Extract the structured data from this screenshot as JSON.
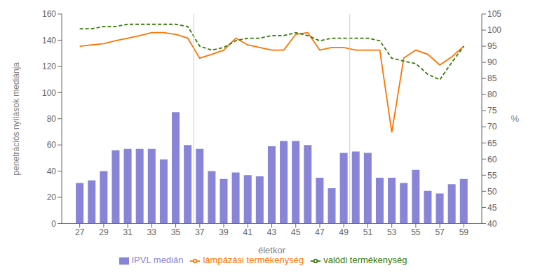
{
  "chart_data": {
    "type": "bar",
    "x": [
      27,
      28,
      29,
      30,
      31,
      32,
      33,
      34,
      35,
      36,
      37,
      38,
      39,
      40,
      41,
      42,
      43,
      44,
      45,
      46,
      47,
      48,
      49,
      50,
      51,
      52,
      53,
      54,
      55,
      56,
      57,
      58,
      59
    ],
    "xlim": [
      25.5,
      60.5
    ],
    "xticks": [
      27,
      29,
      31,
      33,
      35,
      37,
      39,
      41,
      43,
      45,
      47,
      49,
      51,
      53,
      55,
      57,
      59
    ],
    "xlabel": "életkor",
    "ylabel": "penetrációs nyílások mediánja",
    "y2label": "%",
    "ylim": [
      0,
      160
    ],
    "yticks": [
      0,
      20,
      40,
      60,
      80,
      100,
      120,
      140,
      160
    ],
    "y2lim": [
      40,
      105
    ],
    "y2ticks": [
      40,
      45,
      50,
      55,
      60,
      65,
      70,
      75,
      80,
      85,
      90,
      95,
      100,
      105
    ],
    "grid": false,
    "legend": "bottom",
    "vlines": [
      36.5,
      49.5
    ],
    "series": [
      {
        "name": "IPVL medián",
        "type": "bar",
        "color": "#8884d8",
        "values": [
          31,
          33,
          40,
          56,
          57,
          57,
          57,
          49,
          85,
          60,
          57,
          40,
          34,
          39,
          37,
          36,
          59,
          63,
          63,
          60,
          35,
          27,
          54,
          55,
          54,
          35,
          35,
          31,
          41,
          25,
          23,
          30,
          34
        ]
      },
      {
        "name": "lámpázási termékenység",
        "type": "line",
        "axis": "y2",
        "color": "#ff7300",
        "line_style": "solid",
        "values": [
          95.0,
          95.4,
          95.8,
          96.7,
          97.5,
          98.3,
          99.2,
          99.2,
          98.7,
          97.5,
          91.3,
          92.5,
          93.8,
          97.5,
          95.4,
          94.6,
          93.8,
          93.8,
          98.7,
          99.2,
          93.8,
          94.6,
          94.6,
          93.8,
          93.8,
          93.8,
          68.3,
          91.3,
          93.8,
          92.5,
          89.2,
          91.7,
          95.0
        ]
      },
      {
        "name": "valódi termékenység",
        "type": "line",
        "axis": "y2",
        "color": "#387908",
        "line_style": "dashed",
        "values": [
          100.4,
          100.4,
          101.1,
          101.1,
          101.8,
          101.8,
          101.8,
          101.8,
          101.8,
          101.1,
          95.0,
          93.8,
          94.6,
          96.7,
          97.5,
          97.5,
          98.3,
          98.3,
          99.2,
          98.3,
          96.7,
          97.5,
          97.5,
          97.5,
          97.5,
          96.7,
          91.3,
          90.4,
          89.6,
          86.3,
          84.6,
          90.0,
          95.0
        ]
      }
    ]
  }
}
